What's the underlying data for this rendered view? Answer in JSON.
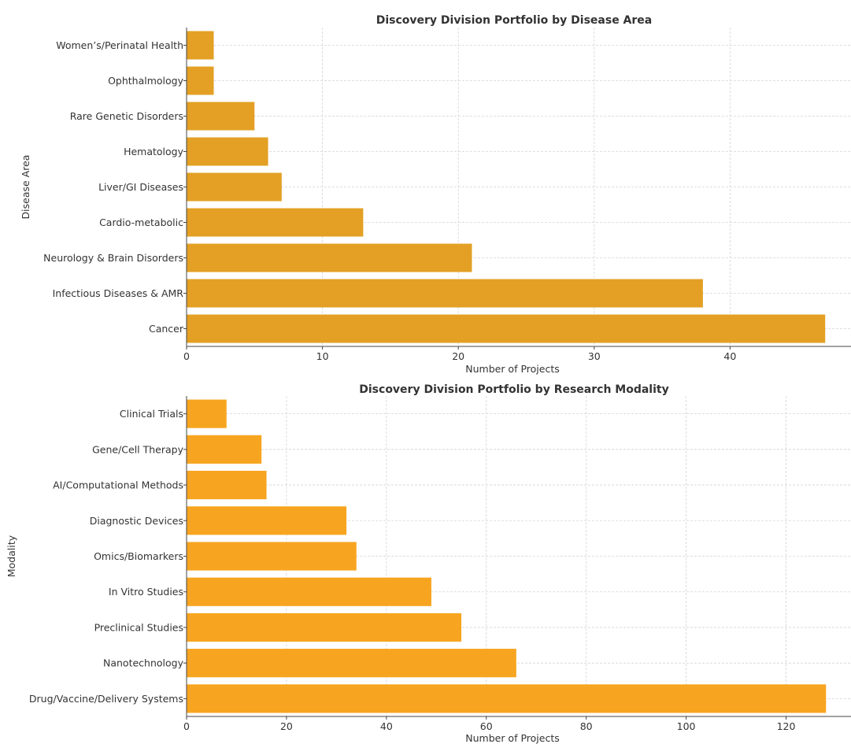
{
  "chart_data": [
    {
      "type": "bar",
      "orientation": "horizontal",
      "title": "Discovery Division Portfolio by Disease Area",
      "xlabel": "Number of Projects",
      "ylabel": "Disease Area",
      "xlim": [
        0,
        48.9
      ],
      "xticks": [
        0,
        10,
        20,
        30,
        40
      ],
      "grid": true,
      "color": "#E3A024",
      "categories": [
        "Cancer",
        "Infectious Diseases & AMR",
        "Neurology & Brain Disorders",
        "Cardio-metabolic",
        "Liver/GI Diseases",
        "Hematology",
        "Rare Genetic Disorders",
        "Ophthalmology",
        "Women’s/Perinatal Health"
      ],
      "values": [
        47,
        38,
        21,
        13,
        7,
        6,
        5,
        2,
        2
      ]
    },
    {
      "type": "bar",
      "orientation": "horizontal",
      "title": "Discovery Division Portfolio by Research Modality",
      "xlabel": "Number of Projects",
      "ylabel": "Modality",
      "xlim": [
        0,
        133
      ],
      "xticks": [
        0,
        20,
        40,
        60,
        80,
        100,
        120
      ],
      "grid": true,
      "color": "#F7A520",
      "categories": [
        "Drug/Vaccine/Delivery Systems",
        "Nanotechnology",
        "Preclinical Studies",
        "In Vitro Studies",
        "Omics/Biomarkers",
        "Diagnostic Devices",
        "AI/Computational Methods",
        "Gene/Cell Therapy",
        "Clinical Trials"
      ],
      "values": [
        128,
        66,
        55,
        49,
        34,
        32,
        16,
        15,
        8
      ]
    }
  ]
}
